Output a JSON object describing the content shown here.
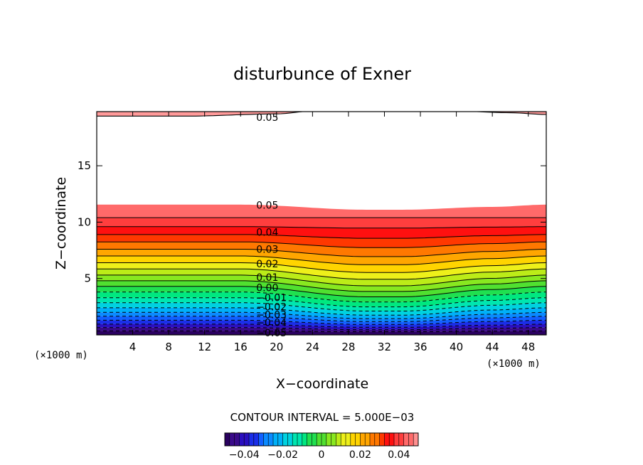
{
  "chart_data": {
    "type": "contour",
    "title": "disturbunce of Exner",
    "xlabel": "X−coordinate",
    "ylabel": "Z−coordinate",
    "x_unit_label_left": "(×1000 m)",
    "x_unit_label_right": "(×1000 m)",
    "xlim": [
      0,
      50
    ],
    "ylim": [
      0,
      19.8
    ],
    "x_ticks": [
      4,
      8,
      12,
      16,
      20,
      24,
      28,
      32,
      36,
      40,
      44,
      48
    ],
    "y_ticks": [
      5,
      10,
      15
    ],
    "contour_interval_label": "CONTOUR INTERVAL = 5.000E−03",
    "contour_interval": 0.005,
    "level_range": [
      -0.05,
      0.05
    ],
    "negative_contours_dashed": true,
    "field_description": "Field increases with height from about -0.05 at the surface to about 0.05 near 11 km; levels are displaced downward near x = 30-34 km. Above ~11.5 km the field exceeds the colour range (white); near the top (about 19.5 km) it returns to 0.05.",
    "upper_boundary_z": [
      [
        0,
        11.55
      ],
      [
        16,
        11.55
      ],
      [
        30,
        11.1
      ],
      [
        34,
        11.1
      ],
      [
        44,
        11.35
      ],
      [
        50,
        11.55
      ]
    ],
    "deep_depression_x": [
      [
        0,
        0
      ],
      [
        16,
        0
      ],
      [
        30,
        1
      ],
      [
        34,
        1
      ],
      [
        44,
        0.3
      ],
      [
        50,
        0
      ]
    ],
    "level_base_heights": [
      {
        "level": -0.05,
        "z": 0.35
      },
      {
        "level": -0.045,
        "z": 0.65
      },
      {
        "level": -0.04,
        "z": 0.95
      },
      {
        "level": -0.035,
        "z": 1.3
      },
      {
        "level": -0.03,
        "z": 1.65
      },
      {
        "level": -0.025,
        "z": 2.0
      },
      {
        "level": -0.02,
        "z": 2.4
      },
      {
        "level": -0.015,
        "z": 2.85
      },
      {
        "level": -0.01,
        "z": 3.3
      },
      {
        "level": -0.005,
        "z": 3.8
      },
      {
        "level": 0.0,
        "z": 4.3
      },
      {
        "level": 0.005,
        "z": 4.8
      },
      {
        "level": 0.01,
        "z": 5.3
      },
      {
        "level": 0.015,
        "z": 5.85
      },
      {
        "level": 0.02,
        "z": 6.4
      },
      {
        "level": 0.025,
        "z": 7.0
      },
      {
        "level": 0.03,
        "z": 7.6
      },
      {
        "level": 0.035,
        "z": 8.25
      },
      {
        "level": 0.04,
        "z": 8.9
      },
      {
        "level": 0.045,
        "z": 9.6
      },
      {
        "level": 0.05,
        "z": 10.4
      }
    ],
    "top_contour_0_05_z": [
      [
        0,
        19.4
      ],
      [
        10,
        19.4
      ],
      [
        20,
        19.6
      ],
      [
        24,
        19.85
      ],
      [
        40,
        19.85
      ],
      [
        46,
        19.7
      ],
      [
        50,
        19.55
      ]
    ],
    "contour_labels": [
      {
        "text": "0.05",
        "x": 17.5,
        "z": 19.3
      },
      {
        "text": "0.05",
        "x": 17.5,
        "z": 11.5
      },
      {
        "text": "0.04",
        "x": 17.5,
        "z": 9.1
      },
      {
        "text": "0.03",
        "x": 17.5,
        "z": 7.6
      },
      {
        "text": "0.02",
        "x": 17.5,
        "z": 6.3
      },
      {
        "text": "0.01",
        "x": 17.5,
        "z": 5.1
      },
      {
        "text": "0.00",
        "x": 17.5,
        "z": 4.2
      },
      {
        "text": "−0.01",
        "x": 17.5,
        "z": 3.3
      },
      {
        "text": "−0.02",
        "x": 17.5,
        "z": 2.5
      },
      {
        "text": "−0.03",
        "x": 17.5,
        "z": 1.8
      },
      {
        "text": "−0.04",
        "x": 17.5,
        "z": 1.1
      },
      {
        "text": "−0.05",
        "x": 17.5,
        "z": 0.2
      }
    ],
    "colorbar": {
      "ticks": [
        -0.04,
        -0.02,
        0,
        0.02,
        0.04
      ],
      "tick_labels": [
        "−0.04",
        "−0.02",
        "0",
        "0.02",
        "0.04"
      ],
      "range": [
        -0.05,
        0.05
      ]
    },
    "colors": [
      "#2a0060",
      "#3a0a8a",
      "#2a0fc0",
      "#1a2ee8",
      "#1160ff",
      "#0a8aff",
      "#00b0f8",
      "#00d2e0",
      "#00e6b0",
      "#00e880",
      "#20e050",
      "#50e030",
      "#88e820",
      "#bcec18",
      "#eef01a",
      "#ffd400",
      "#ffa600",
      "#ff7800",
      "#ff3800",
      "#ff1010",
      "#ff3e3e",
      "#ff6a6a",
      "#ff9090"
    ]
  }
}
